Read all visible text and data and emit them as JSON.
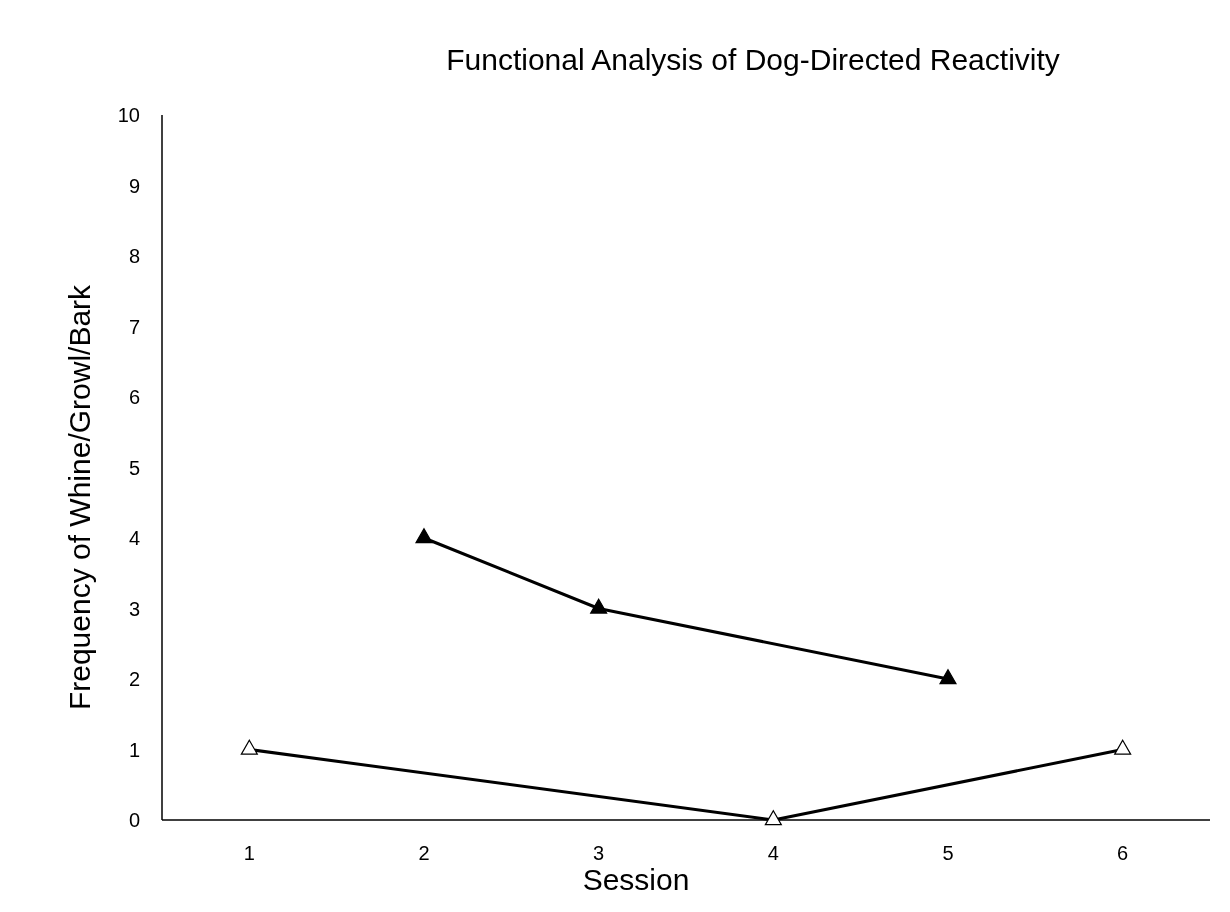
{
  "chart_data": {
    "type": "line",
    "title": "Functional Analysis of Dog-Directed Reactivity",
    "xlabel": "Session",
    "ylabel": "Frequency of Whine/Growl/Bark",
    "xlim": [
      0.5,
      6.5
    ],
    "xticks": [
      1,
      2,
      3,
      4,
      5,
      6
    ],
    "ylim": [
      0,
      10
    ],
    "yticks": [
      0,
      1,
      2,
      3,
      4,
      5,
      6,
      7,
      8,
      9,
      10
    ],
    "grid": false,
    "marker": "triangle",
    "line_style": "solid",
    "series": [
      {
        "color": "#000000",
        "x": [
          2,
          3,
          5
        ],
        "values": [
          4,
          3,
          2
        ]
      },
      {
        "color": "#000000",
        "colors": [
          "#ffffff",
          "#ffffff",
          "#ffffff"
        ],
        "x": [
          1,
          4,
          6
        ],
        "values": [
          1,
          0,
          1
        ]
      }
    ]
  }
}
